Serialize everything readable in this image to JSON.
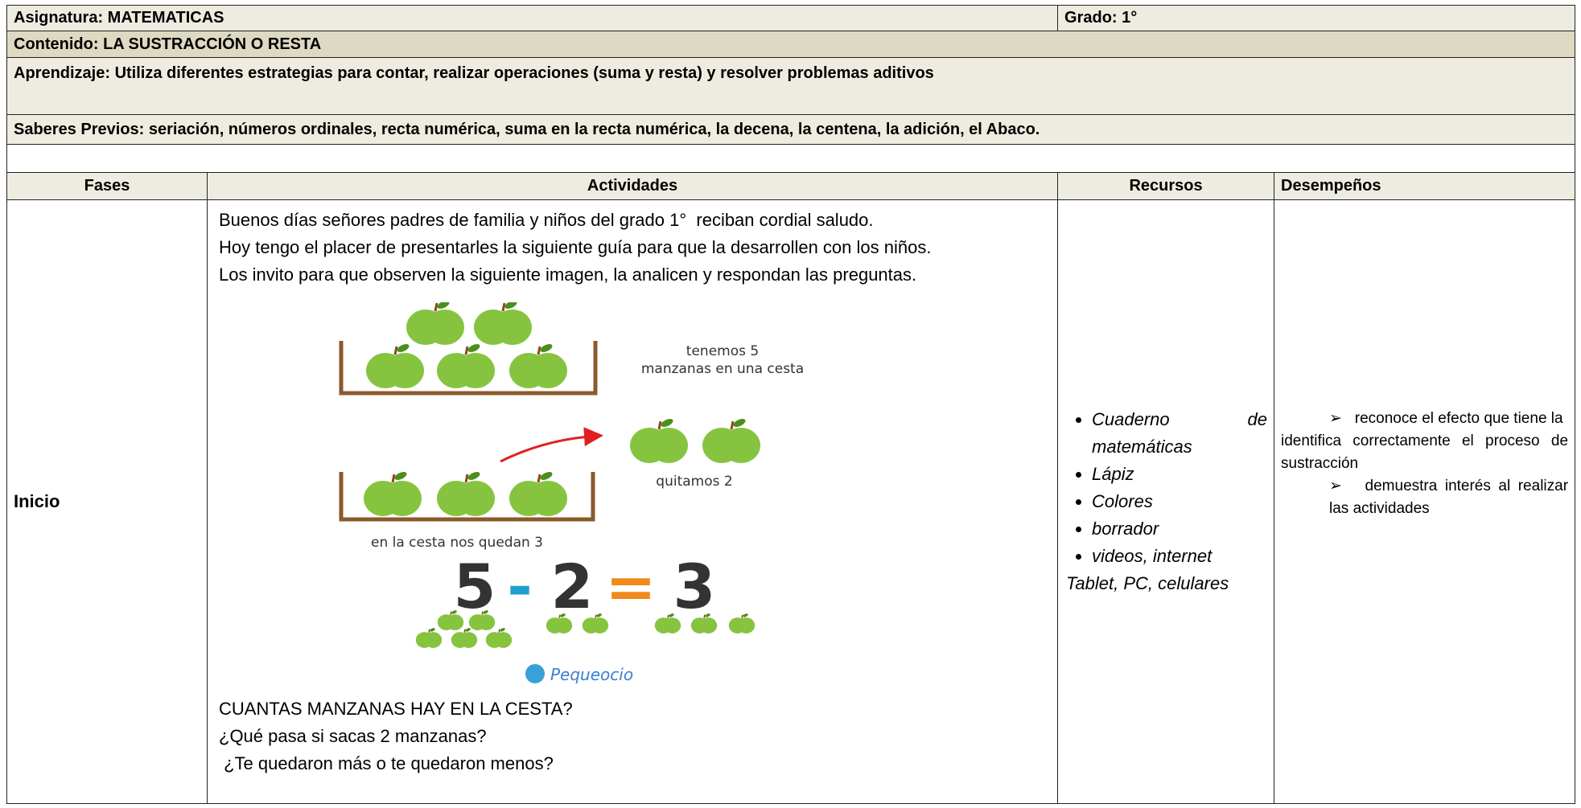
{
  "header": {
    "asignatura": "Asignatura: MATEMATICAS",
    "grado": "Grado: 1°",
    "contenido": "Contenido: LA SUSTRACCIÓN O RESTA",
    "aprendizaje": "Aprendizaje: Utiliza diferentes estrategias para contar, realizar operaciones (suma y resta) y resolver problemas aditivos",
    "saberes": "Saberes Previos: seriación, números ordinales, recta numérica, suma en la recta numérica, la decena, la centena, la adición, el Abaco."
  },
  "table": {
    "columns": [
      "Fases",
      "Actividades",
      "Recursos",
      "Desempeños"
    ],
    "rows": [
      {
        "fase": "Inicio",
        "intro": [
          "Buenos días señores padres de familia y niños del grado 1°  reciban cordial saludo.",
          "Hoy tengo el placer de presentarles la siguiente guía para que la desarrollen con los niños.",
          "Los invito para que observen la siguiente imagen, la analicen y respondan las preguntas."
        ],
        "questions": [
          "CUANTAS MANZANAS HAY EN LA CESTA?",
          "¿Qué pasa si sacas 2 manzanas?",
          " ¿Te quedaron más o te quedaron menos?"
        ],
        "recursos": [
          "Cuaderno de matemáticas",
          "Lápiz",
          "Colores",
          "borrador",
          "videos, internet"
        ],
        "recursos_extra": "Tablet, PC, celulares",
        "desempenos": [
          "reconoce el efecto que tiene la",
          "identifica correctamente el proceso de sustracción",
          "demuestra interés al realizar las actividades"
        ]
      }
    ]
  },
  "illustration": {
    "tenemos": "tenemos 5",
    "cesta": "manzanas en una cesta",
    "quitamos": "quitamos 2",
    "quedan": "en la cesta nos quedan 3",
    "equation": [
      "5",
      "-",
      "2",
      "=",
      "3"
    ],
    "brand": "Pequeocio"
  }
}
